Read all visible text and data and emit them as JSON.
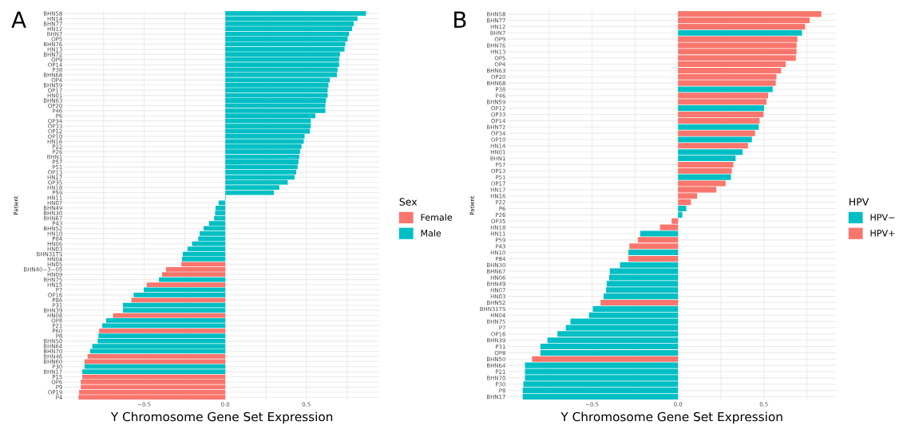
{
  "chart_data": [
    {
      "type": "bar",
      "orientation": "horizontal",
      "title": "A",
      "xlabel": "Y Chromosome Gene Set Expression",
      "ylabel": "Patient",
      "legend_title": "Sex",
      "legend": "right",
      "grid": true,
      "categories": [
        "BHN58",
        "HN14",
        "BHN77",
        "HN12",
        "BHN7",
        "OP5",
        "BHN76",
        "HN13",
        "BHN72",
        "OP9",
        "OP14",
        "P38",
        "BHN68",
        "OP4",
        "BHN59",
        "OP17",
        "HN01",
        "BHN63",
        "OP20",
        "P46",
        "P6",
        "OP34",
        "OP33",
        "OP12",
        "OP10",
        "HN16",
        "P22",
        "P26",
        "BHN1",
        "P57",
        "P51",
        "OP13",
        "HN17",
        "OP35",
        "HN18",
        "P59",
        "HN11",
        "HN07",
        "BHN49",
        "BHN30",
        "BHN67",
        "P43",
        "BHN52",
        "HN10",
        "P84",
        "HN06",
        "HN03",
        "BHN31TS",
        "HN04",
        "HN05",
        "BHN40−3−05",
        "HN09",
        "BHN75",
        "HN15",
        "P7",
        "OP16",
        "P86",
        "P31",
        "BHN39",
        "HN08",
        "OP8",
        "P21",
        "P60",
        "P8",
        "BHN50",
        "BHN64",
        "BHN70",
        "BHN46",
        "BHN60",
        "P30",
        "BHN17",
        "P15",
        "OP6",
        "P9",
        "OP19",
        "P4"
      ],
      "series": [
        {
          "name": "Female",
          "color": "#f8766d",
          "values": [
            null,
            null,
            null,
            null,
            null,
            null,
            null,
            null,
            null,
            null,
            null,
            null,
            null,
            null,
            null,
            null,
            null,
            null,
            null,
            null,
            null,
            null,
            null,
            null,
            null,
            null,
            null,
            null,
            null,
            null,
            null,
            null,
            null,
            null,
            null,
            null,
            null,
            null,
            null,
            null,
            null,
            null,
            null,
            null,
            null,
            null,
            null,
            null,
            null,
            -0.271,
            -0.366,
            -0.39,
            null,
            -0.484,
            null,
            null,
            -0.579,
            null,
            null,
            -0.692,
            null,
            null,
            -0.778,
            null,
            null,
            null,
            null,
            -0.849,
            -0.868,
            null,
            null,
            -0.882,
            -0.891,
            -0.891,
            -0.901,
            -0.905
          ]
        },
        {
          "name": "Male",
          "color": "#00bfc4",
          "values": [
            0.867,
            0.815,
            0.792,
            0.782,
            0.763,
            0.754,
            0.74,
            0.735,
            0.707,
            0.702,
            0.702,
            0.692,
            0.688,
            0.645,
            0.636,
            0.631,
            0.631,
            0.621,
            0.617,
            0.617,
            0.555,
            0.527,
            0.527,
            0.522,
            0.489,
            0.484,
            0.47,
            0.461,
            0.456,
            0.451,
            0.446,
            0.437,
            0.427,
            0.385,
            0.333,
            0.3,
            0.003,
            -0.041,
            -0.06,
            -0.063,
            -0.069,
            -0.101,
            -0.134,
            -0.158,
            -0.167,
            -0.205,
            -0.233,
            -0.262,
            -0.267,
            null,
            null,
            null,
            -0.409,
            null,
            -0.503,
            -0.565,
            null,
            -0.631,
            -0.631,
            null,
            -0.735,
            -0.759,
            null,
            -0.782,
            -0.787,
            -0.82,
            -0.834,
            null,
            null,
            -0.868,
            -0.882,
            null,
            null,
            null,
            null,
            null
          ]
        }
      ],
      "xlim": [
        -0.99,
        0.95
      ],
      "xticks": [
        {
          "value": -0.75,
          "label": null
        },
        {
          "value": -0.5,
          "label": "−0.5"
        },
        {
          "value": -0.25,
          "label": null
        },
        {
          "value": 0,
          "label": "0.0"
        },
        {
          "value": 0.25,
          "label": null
        },
        {
          "value": 0.5,
          "label": "0.5"
        },
        {
          "value": 0.75,
          "label": null
        }
      ]
    },
    {
      "type": "bar",
      "orientation": "horizontal",
      "title": "B",
      "xlabel": "Y Chromosome Gene Set Expression",
      "ylabel": "Patient",
      "legend_title": "HPV",
      "legend": "right",
      "grid": true,
      "categories": [
        "BHN58",
        "BHN77",
        "HN12",
        "BHN7",
        "OP9",
        "BHN76",
        "HN13",
        "OP5",
        "OP4",
        "BHN63",
        "OP20",
        "BHN68",
        "P38",
        "P46",
        "BHN59",
        "OP12",
        "OP33",
        "OP14",
        "BHN72",
        "OP34",
        "OP10",
        "HN14",
        "HN01",
        "BHN1",
        "P57",
        "OP13",
        "P51",
        "OP17",
        "HN17",
        "HN16",
        "P22",
        "P6",
        "P26",
        "OP35",
        "HN18",
        "HN11",
        "P59",
        "P43",
        "HN10",
        "P84",
        "BHN30",
        "BHN67",
        "HN06",
        "BHN49",
        "HN07",
        "HN03",
        "BHN52",
        "BHN31TS",
        "HN04",
        "BHN75",
        "P7",
        "OP16",
        "BHN39",
        "P31",
        "OP8",
        "BHN50",
        "BHN64",
        "P21",
        "BHN70",
        "P30",
        "P8",
        "BHN17"
      ],
      "series": [
        {
          "name": "HPV−",
          "color": "#00bfc4",
          "values": [
            null,
            null,
            null,
            0.722,
            null,
            null,
            null,
            null,
            null,
            null,
            null,
            null,
            0.551,
            null,
            null,
            0.501,
            null,
            null,
            0.47,
            null,
            0.43,
            null,
            0.376,
            0.335,
            null,
            null,
            0.308,
            null,
            null,
            null,
            null,
            0.048,
            0.025,
            null,
            null,
            -0.22,
            null,
            null,
            -0.289,
            null,
            -0.338,
            -0.397,
            -0.401,
            -0.415,
            -0.419,
            -0.433,
            null,
            -0.496,
            -0.518,
            -0.626,
            -0.653,
            -0.702,
            -0.76,
            -0.801,
            -0.801,
            null,
            -0.891,
            -0.891,
            -0.891,
            -0.9,
            -0.904,
            -0.904
          ]
        },
        {
          "name": "HPV+",
          "color": "#f8766d",
          "values": [
            0.834,
            0.766,
            0.74,
            null,
            0.695,
            0.69,
            0.69,
            0.686,
            0.627,
            0.6,
            0.573,
            0.569,
            null,
            0.524,
            0.515,
            null,
            0.497,
            0.475,
            null,
            0.448,
            null,
            0.407,
            null,
            null,
            0.322,
            0.313,
            null,
            0.277,
            0.223,
            0.111,
            0.075,
            null,
            null,
            -0.037,
            -0.105,
            null,
            -0.234,
            -0.283,
            null,
            -0.289,
            null,
            null,
            null,
            null,
            null,
            null,
            -0.451,
            null,
            null,
            null,
            null,
            null,
            null,
            null,
            null,
            -0.85,
            null,
            null,
            null,
            null,
            null,
            null
          ]
        }
      ],
      "xlim": [
        -0.99,
        0.92
      ],
      "xticks": [
        {
          "value": -0.75,
          "label": null
        },
        {
          "value": -0.5,
          "label": "−0.5"
        },
        {
          "value": -0.25,
          "label": null
        },
        {
          "value": 0,
          "label": "0.0"
        },
        {
          "value": 0.25,
          "label": null
        },
        {
          "value": 0.5,
          "label": "0.5"
        },
        {
          "value": 0.75,
          "label": null
        }
      ]
    }
  ]
}
